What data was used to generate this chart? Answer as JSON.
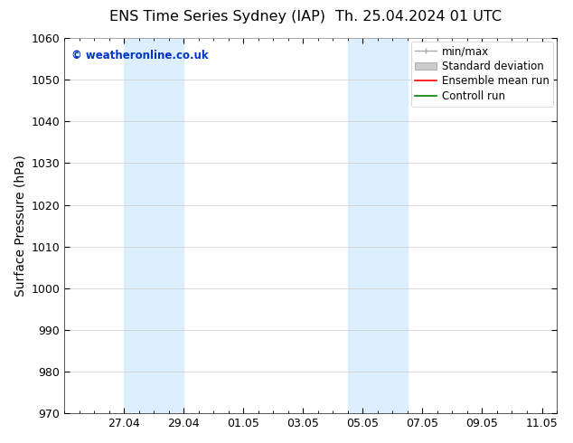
{
  "title_left": "ENS Time Series Sydney (IAP)",
  "title_right": "Th. 25.04.2024 01 UTC",
  "ylabel": "Surface Pressure (hPa)",
  "ylim": [
    970,
    1060
  ],
  "yticks": [
    970,
    980,
    990,
    1000,
    1010,
    1020,
    1030,
    1040,
    1050,
    1060
  ],
  "xtick_labels": [
    "27.04",
    "29.04",
    "01.05",
    "03.05",
    "05.05",
    "07.05",
    "09.05",
    "11.05"
  ],
  "xtick_positions": [
    2,
    4,
    6,
    8,
    10,
    12,
    14,
    16
  ],
  "watermark": "© weatheronline.co.uk",
  "watermark_color": "#0033cc",
  "background_color": "#ffffff",
  "plot_bg_color": "#ffffff",
  "shaded_regions": [
    {
      "xmin": 2.0,
      "xmax": 4.0,
      "color": "#ddeeff"
    },
    {
      "xmin": 9.5,
      "xmax": 11.5,
      "color": "#ddeeff"
    }
  ],
  "legend_items": [
    {
      "label": "min/max",
      "color": "#aaaaaa",
      "lw": 1.0,
      "type": "errorbar"
    },
    {
      "label": "Standard deviation",
      "color": "#cccccc",
      "lw": 5,
      "type": "band"
    },
    {
      "label": "Ensemble mean run",
      "color": "#ff0000",
      "lw": 1.2,
      "type": "line"
    },
    {
      "label": "Controll run",
      "color": "#008000",
      "lw": 1.2,
      "type": "line"
    }
  ],
  "xlim": [
    0,
    16
  ],
  "title_fontsize": 11.5,
  "label_fontsize": 10,
  "tick_fontsize": 9,
  "legend_fontsize": 8.5
}
